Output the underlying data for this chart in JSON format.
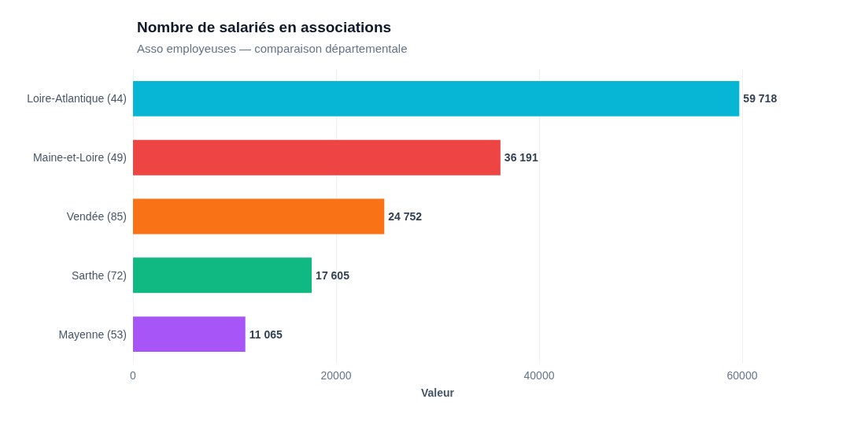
{
  "chart_data": {
    "type": "bar",
    "orientation": "horizontal",
    "title": "Nombre de salariés en associations",
    "subtitle": "Asso employeuses — comparaison départementale",
    "xlabel": "Valeur",
    "categories": [
      "Loire-Atlantique (44)",
      "Maine-et-Loire (49)",
      "Vendée (85)",
      "Sarthe (72)",
      "Mayenne (53)"
    ],
    "values": [
      59718,
      36191,
      24752,
      17605,
      11065
    ],
    "colors": [
      "#06b6d4",
      "#ef4444",
      "#f97316",
      "#10b981",
      "#a855f7"
    ],
    "value_labels": [
      "59 718",
      "36 191",
      "24 752",
      "17 605",
      "11 065"
    ],
    "xlim": [
      0,
      60000
    ],
    "xticks": [
      0,
      20000,
      40000,
      60000
    ],
    "grid": "x"
  }
}
